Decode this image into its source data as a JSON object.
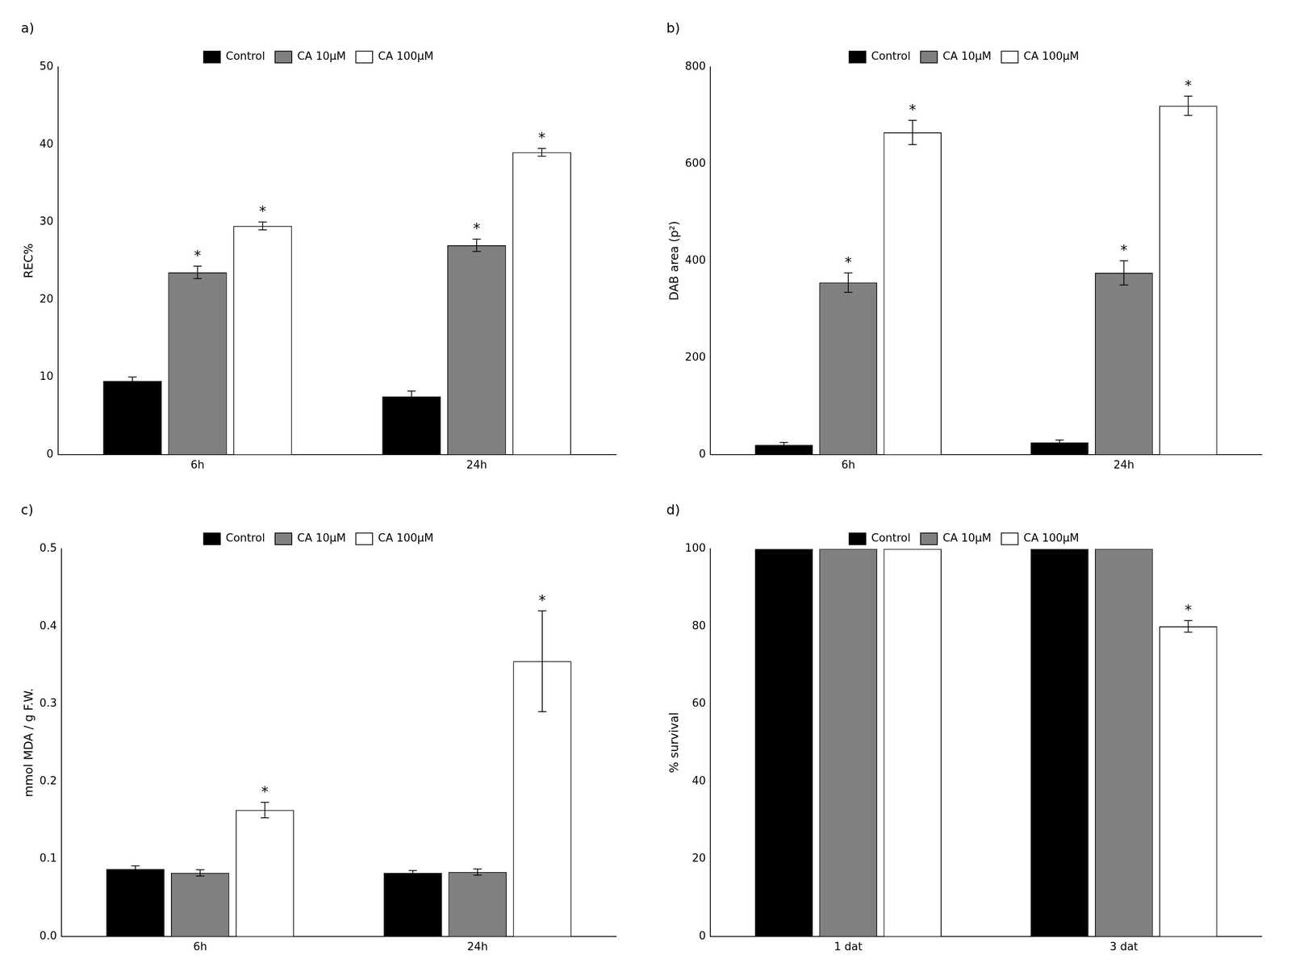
{
  "chart_data": [
    {
      "type": "bar",
      "title": "a)",
      "y_label": "REC%",
      "categories": [
        "6h",
        "24h"
      ],
      "ylim": [
        0,
        50
      ],
      "yticks": [
        0,
        10,
        20,
        30,
        40,
        50
      ],
      "grid": false,
      "legend": "top",
      "series": [
        {
          "name": "Control",
          "color": "#000000",
          "values": [
            9.5,
            7.5
          ],
          "errors": [
            0.5,
            0.7
          ]
        },
        {
          "name": "CA 10μM",
          "color": "#808080",
          "values": [
            23.5,
            27.0
          ],
          "errors": [
            0.8,
            0.8
          ]
        },
        {
          "name": "CA 100μM",
          "color": "#ffffff",
          "values": [
            29.5,
            39.0
          ],
          "errors": [
            0.5,
            0.5
          ]
        }
      ],
      "annotations": [
        {
          "text": "*",
          "series": "CA 10μM",
          "category": "6h"
        },
        {
          "text": "*",
          "series": "CA 10μM",
          "category": "24h"
        },
        {
          "text": "*",
          "series": "CA 100μM",
          "category": "6h"
        },
        {
          "text": "*",
          "series": "CA 100μM",
          "category": "24h"
        }
      ]
    },
    {
      "type": "bar",
      "title": "b)",
      "y_label": "DAB area (p²)",
      "categories": [
        "6h",
        "24h"
      ],
      "ylim": [
        0,
        800
      ],
      "yticks": [
        0,
        200,
        400,
        600,
        800
      ],
      "grid": false,
      "legend": "top",
      "series": [
        {
          "name": "Control",
          "color": "#000000",
          "values": [
            20,
            25
          ],
          "errors": [
            5,
            5
          ]
        },
        {
          "name": "CA 10μM",
          "color": "#808080",
          "values": [
            355,
            375
          ],
          "errors": [
            20,
            25
          ]
        },
        {
          "name": "CA 100μM",
          "color": "#ffffff",
          "values": [
            665,
            720
          ],
          "errors": [
            25,
            20
          ]
        }
      ],
      "annotations": [
        {
          "text": "*",
          "series": "CA 10μM",
          "category": "6h"
        },
        {
          "text": "*",
          "series": "CA 10μM",
          "category": "24h"
        },
        {
          "text": "*",
          "series": "CA 100μM",
          "category": "6h"
        },
        {
          "text": "*",
          "series": "CA 100μM",
          "category": "24h"
        }
      ]
    },
    {
      "type": "bar",
      "title": "c)",
      "y_label": "mmol MDA / g F.W.",
      "categories": [
        "6h",
        "24h"
      ],
      "ylim": [
        0,
        0.5
      ],
      "yticks": [
        {
          "value": 0.0,
          "label": "0.0"
        },
        0.1,
        0.2,
        0.3,
        0.4,
        0.5
      ],
      "grid": false,
      "legend": "top",
      "series": [
        {
          "name": "Control",
          "color": "#000000",
          "values": [
            0.087,
            0.082
          ],
          "errors": [
            0.004,
            0.003
          ]
        },
        {
          "name": "CA 10μM",
          "color": "#808080",
          "values": [
            0.082,
            0.083
          ],
          "errors": [
            0.004,
            0.004
          ]
        },
        {
          "name": "CA 100μM",
          "color": "#ffffff",
          "values": [
            0.163,
            0.355
          ],
          "errors": [
            0.01,
            0.065
          ]
        }
      ],
      "annotations": [
        {
          "text": "*",
          "series": "CA 100μM",
          "category": "6h"
        },
        {
          "text": "*",
          "series": "CA 100μM",
          "category": "24h"
        }
      ]
    },
    {
      "type": "bar",
      "title": "d)",
      "y_label": "% survival",
      "categories": [
        "1 dat",
        "3 dat"
      ],
      "ylim": [
        0,
        100
      ],
      "yticks": [
        0,
        20,
        40,
        60,
        80,
        100
      ],
      "grid": false,
      "legend": "top",
      "series": [
        {
          "name": "Control",
          "color": "#000000",
          "values": [
            100,
            100
          ],
          "errors": [
            0,
            0
          ]
        },
        {
          "name": "CA 10μM",
          "color": "#808080",
          "values": [
            100,
            100
          ],
          "errors": [
            0,
            0
          ]
        },
        {
          "name": "CA 100μM",
          "color": "#ffffff",
          "values": [
            100,
            80
          ],
          "errors": [
            0,
            1.5
          ]
        }
      ],
      "annotations": [
        {
          "text": "*",
          "series": "CA 100μM",
          "category": "3 dat"
        }
      ]
    }
  ]
}
